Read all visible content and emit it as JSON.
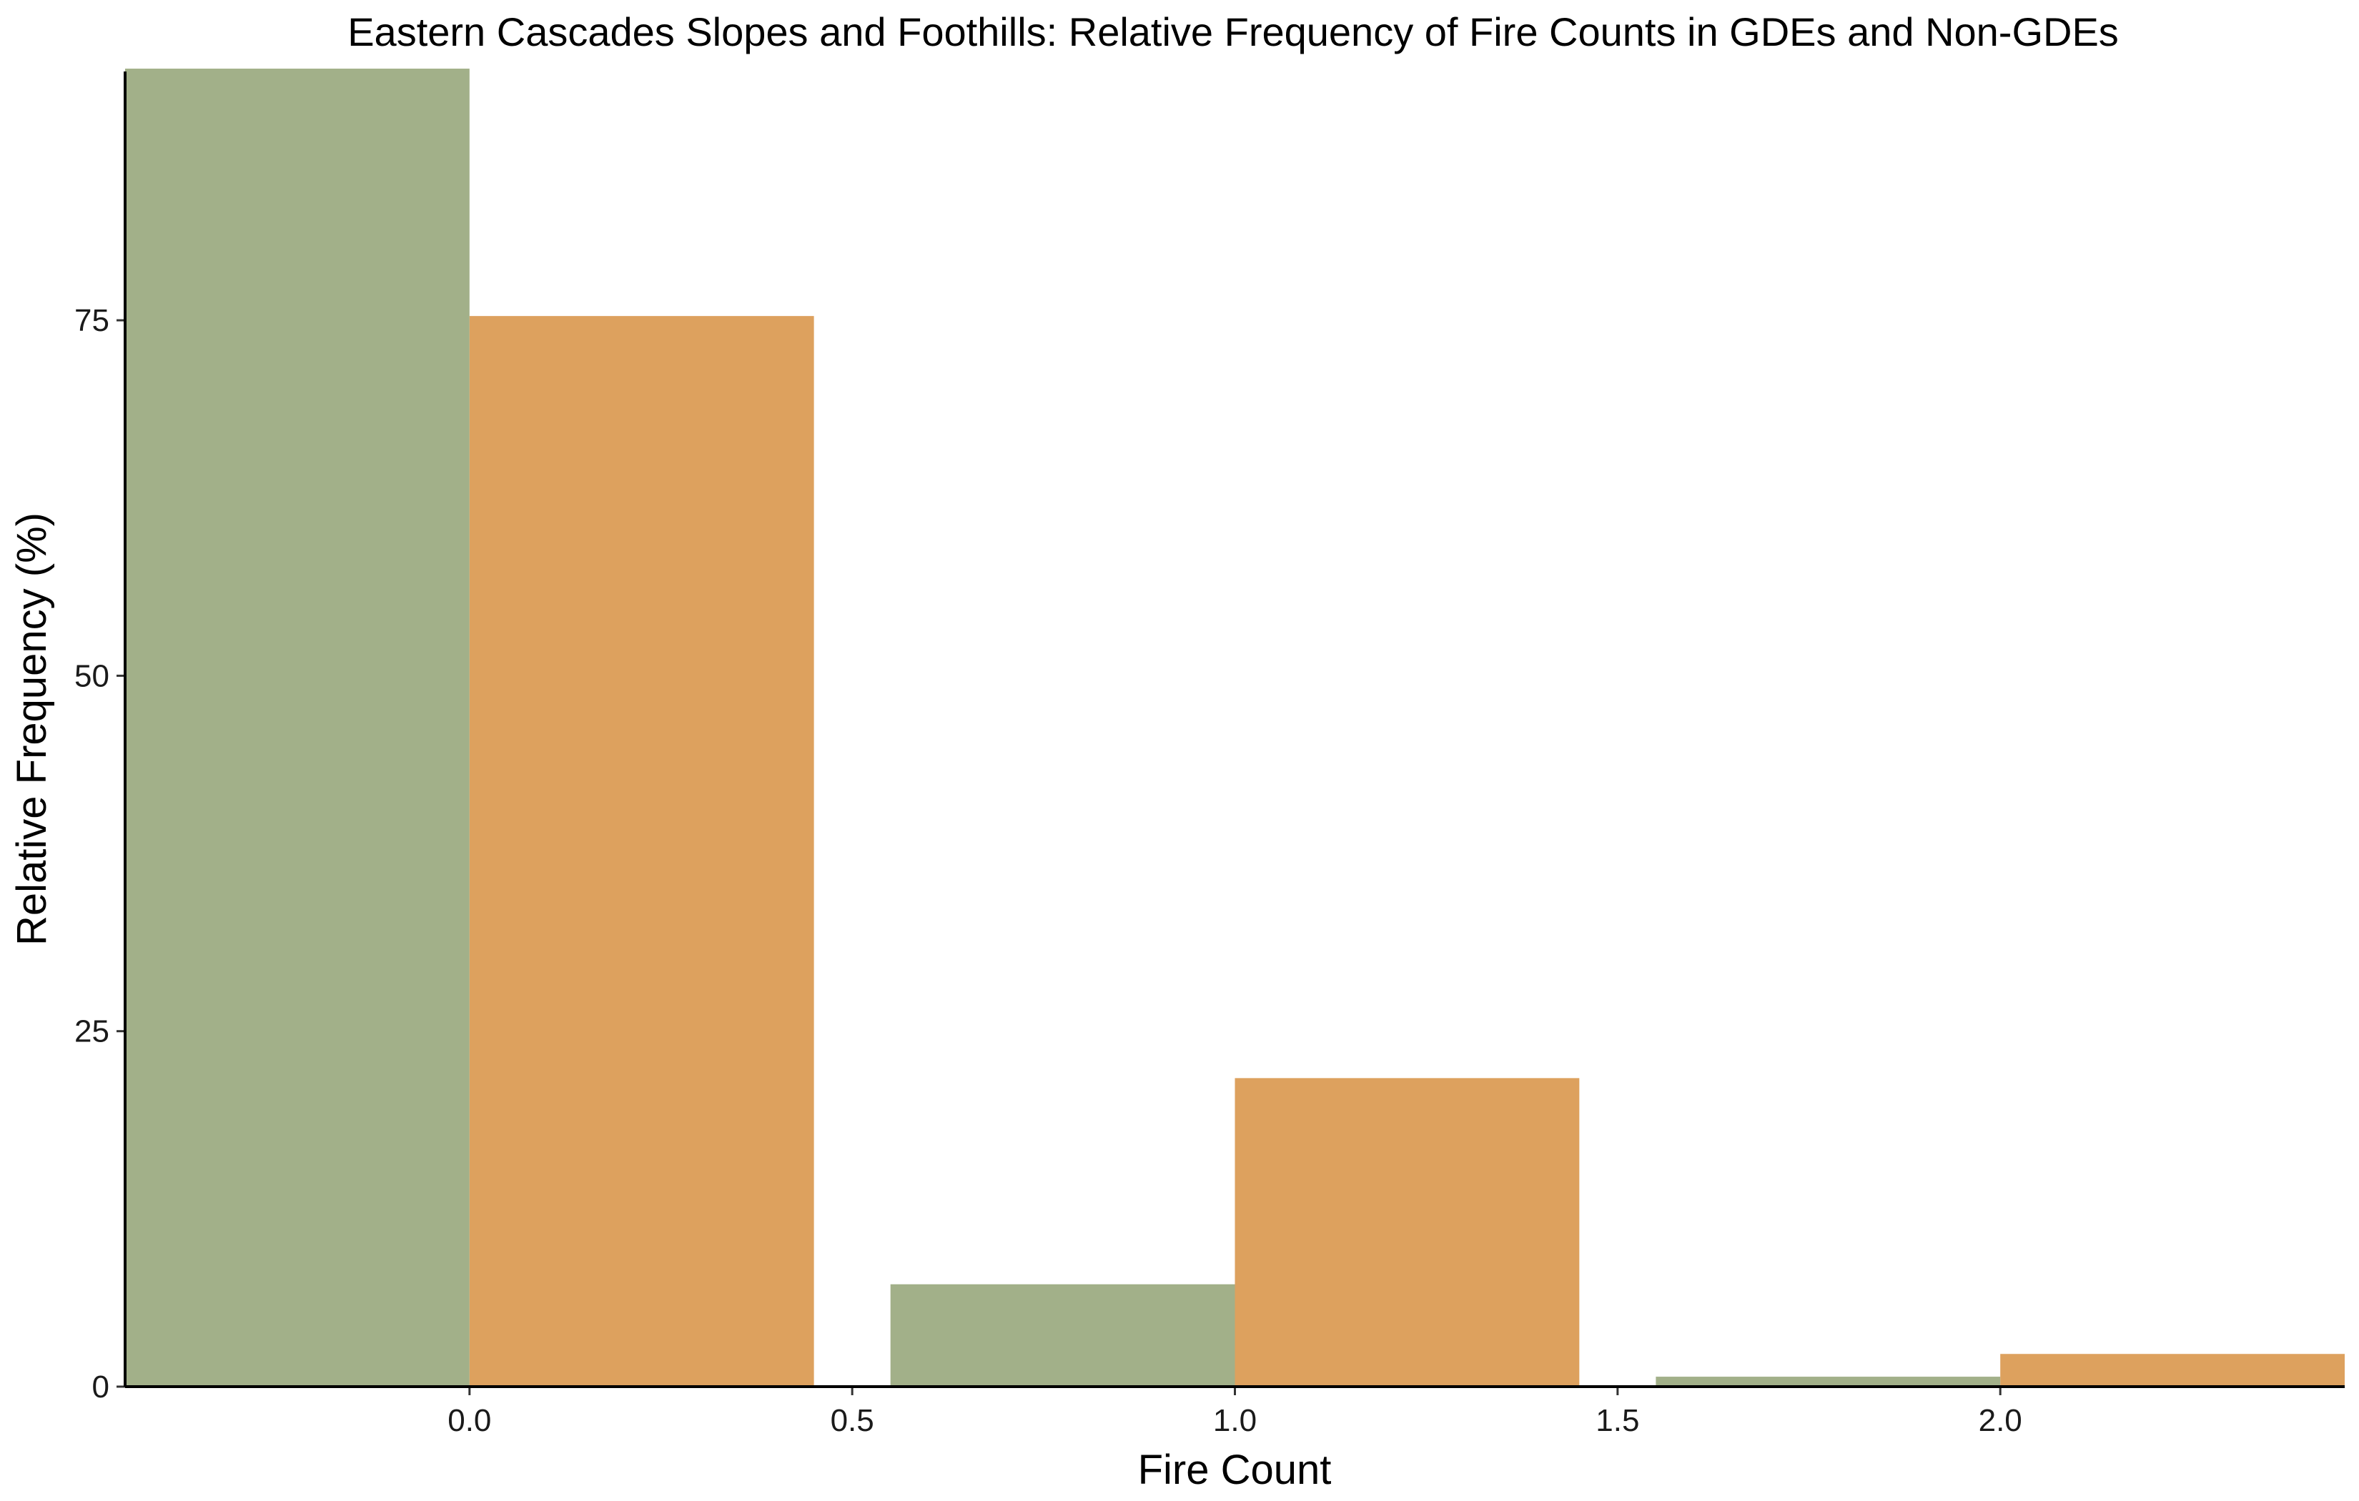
{
  "chart_data": {
    "type": "bar",
    "title": "Eastern Cascades Slopes and Foothills: Relative Frequency of Fire Counts in GDEs and Non-GDEs",
    "xlabel": "Fire Count",
    "ylabel": "Relative Frequency (%)",
    "x_ticks": [
      "0.0",
      "0.5",
      "1.0",
      "1.5",
      "2.0"
    ],
    "y_ticks": [
      "0",
      "25",
      "50",
      "75"
    ],
    "xlim": [
      -0.45,
      2.45
    ],
    "ylim": [
      0,
      92.5
    ],
    "grid": false,
    "legend": "none",
    "categories": [
      0,
      1,
      2
    ],
    "series": [
      {
        "color": "#a2b089",
        "values": [
          92.7,
          7.2,
          0.7
        ]
      },
      {
        "color": "#dda15e",
        "values": [
          75.3,
          21.7,
          2.3
        ]
      }
    ]
  }
}
